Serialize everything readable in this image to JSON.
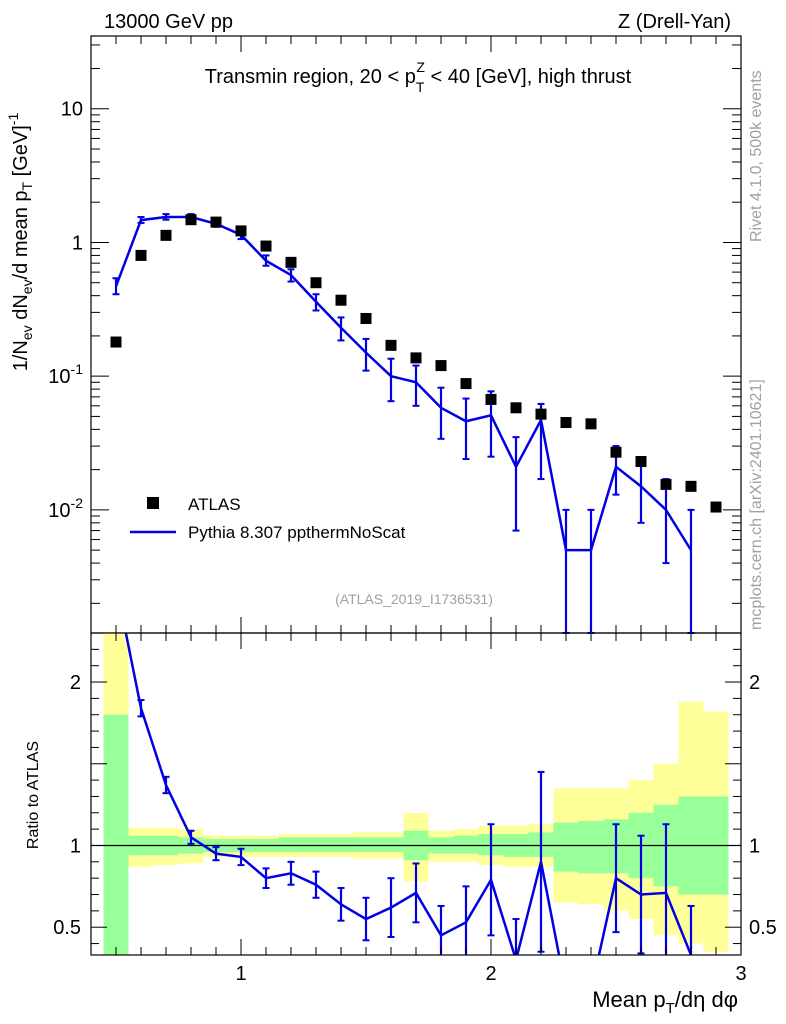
{
  "header": {
    "left": "13000 GeV pp",
    "right": "Z (Drell-Yan)"
  },
  "side_labels": {
    "rivet": "Rivet 4.1.0,  500k events",
    "mcplots": "mcplots.cern.ch [arXiv:2401.10621]"
  },
  "chart_data": [
    {
      "type": "scatter",
      "title": "Transmin region, 20 < p_T^Z < 40 [GeV], high thrust",
      "title_parts": {
        "prefix": "Transmin region, 20 < p",
        "sub": "T",
        "sup": "Z",
        "suffix": " < 40 [GeV], high thrust"
      },
      "watermark": "(ATLAS_2019_I1736531)",
      "xlabel": "Mean p_T/dη dφ",
      "ylabel": "1/N_ev dN_ev/d mean p_T [GeV]^-1",
      "xlim": [
        0.4,
        3.0
      ],
      "ylim": [
        0.0012,
        35
      ],
      "yscale": "log",
      "ytick_labels": [
        "10^-2",
        "10^-1",
        "1",
        "10"
      ],
      "legend": {
        "position": "bottom-left",
        "entries": [
          "ATLAS",
          "Pythia 8.307 ppthermNoScat"
        ]
      },
      "series": [
        {
          "name": "ATLAS",
          "marker": "square",
          "color": "#000000",
          "x": [
            0.5,
            0.6,
            0.7,
            0.8,
            0.9,
            1.0,
            1.1,
            1.2,
            1.3,
            1.4,
            1.5,
            1.6,
            1.7,
            1.8,
            1.9,
            2.0,
            2.1,
            2.2,
            2.3,
            2.4,
            2.5,
            2.6,
            2.7,
            2.8,
            2.9
          ],
          "y": [
            0.18,
            0.8,
            1.13,
            1.48,
            1.42,
            1.22,
            0.94,
            0.71,
            0.5,
            0.37,
            0.27,
            0.17,
            0.137,
            0.12,
            0.088,
            0.067,
            0.058,
            0.052,
            0.045,
            0.044,
            0.027,
            0.023,
            0.0155,
            0.015,
            0.0105
          ]
        },
        {
          "name": "Pythia 8.307 ppthermNoScat",
          "marker": "line",
          "color": "#0000e6",
          "x": [
            0.5,
            0.6,
            0.7,
            0.8,
            0.9,
            1.0,
            1.1,
            1.2,
            1.3,
            1.4,
            1.5,
            1.6,
            1.7,
            1.8,
            1.9,
            2.0,
            2.1,
            2.2,
            2.3,
            2.4,
            2.5,
            2.6,
            2.7,
            2.8
          ],
          "y": [
            0.47,
            1.47,
            1.55,
            1.55,
            1.38,
            1.14,
            0.73,
            0.57,
            0.36,
            0.23,
            0.15,
            0.1,
            0.09,
            0.058,
            0.046,
            0.051,
            0.021,
            0.047,
            0.005,
            0.005,
            0.021,
            0.015,
            0.01,
            0.005
          ],
          "yerr_low": [
            0.06,
            0.07,
            0.07,
            0.07,
            0.07,
            0.08,
            0.06,
            0.06,
            0.05,
            0.045,
            0.04,
            0.035,
            0.03,
            0.024,
            0.022,
            0.026,
            0.014,
            0.03,
            0.004,
            0.004,
            0.008,
            0.007,
            0.006,
            0.004
          ],
          "yerr_high": [
            0.07,
            0.08,
            0.08,
            0.08,
            0.08,
            0.09,
            0.07,
            0.06,
            0.05,
            0.045,
            0.04,
            0.035,
            0.03,
            0.024,
            0.022,
            0.026,
            0.014,
            0.015,
            0.005,
            0.005,
            0.009,
            0.008,
            0.007,
            0.005
          ]
        }
      ]
    },
    {
      "type": "line",
      "ylabel": "Ratio to ATLAS",
      "xlabel": "Mean p_T/dη dφ",
      "xlim": [
        0.4,
        3.0
      ],
      "ylim": [
        0.33,
        2.3
      ],
      "xticks": [
        1,
        2,
        3
      ],
      "yticks": [
        0.5,
        1,
        2
      ],
      "ref_line": 1,
      "bands": {
        "x_edges": [
          0.45,
          0.55,
          0.65,
          0.75,
          0.85,
          0.95,
          1.05,
          1.15,
          1.25,
          1.35,
          1.45,
          1.55,
          1.65,
          1.75,
          1.85,
          1.95,
          2.05,
          2.15,
          2.25,
          2.35,
          2.45,
          2.55,
          2.65,
          2.75,
          2.85,
          2.95
        ],
        "yellow_low": [
          0.0,
          0.87,
          0.88,
          0.89,
          0.93,
          0.93,
          0.93,
          0.93,
          0.93,
          0.93,
          0.92,
          0.92,
          0.78,
          0.9,
          0.9,
          0.88,
          0.87,
          0.87,
          0.65,
          0.64,
          0.6,
          0.55,
          0.45,
          0.4,
          0.35
        ],
        "yellow_high": [
          2.3,
          1.11,
          1.11,
          1.1,
          1.06,
          1.06,
          1.06,
          1.07,
          1.07,
          1.07,
          1.08,
          1.08,
          1.2,
          1.09,
          1.1,
          1.12,
          1.12,
          1.13,
          1.35,
          1.35,
          1.35,
          1.4,
          1.5,
          1.88,
          1.82
        ],
        "green_low": [
          0.0,
          0.94,
          0.94,
          0.95,
          0.96,
          0.96,
          0.96,
          0.96,
          0.96,
          0.96,
          0.96,
          0.96,
          0.91,
          0.95,
          0.95,
          0.94,
          0.93,
          0.93,
          0.84,
          0.83,
          0.83,
          0.8,
          0.75,
          0.7,
          0.7
        ],
        "green_high": [
          1.8,
          1.06,
          1.06,
          1.05,
          1.04,
          1.04,
          1.04,
          1.05,
          1.05,
          1.05,
          1.05,
          1.05,
          1.09,
          1.05,
          1.06,
          1.07,
          1.07,
          1.08,
          1.14,
          1.15,
          1.16,
          1.2,
          1.25,
          1.3,
          1.3
        ]
      },
      "series": [
        {
          "name": "Pythia 8.307 ppthermNoScat / ATLAS",
          "color": "#0000e6",
          "x": [
            0.5,
            0.6,
            0.7,
            0.8,
            0.9,
            1.0,
            1.1,
            1.2,
            1.3,
            1.4,
            1.5,
            1.6,
            1.7,
            1.8,
            1.9,
            2.0,
            2.1,
            2.2,
            2.3,
            2.4,
            2.5,
            2.6,
            2.7,
            2.8
          ],
          "y": [
            2.6,
            1.84,
            1.37,
            1.05,
            0.95,
            0.93,
            0.8,
            0.83,
            0.76,
            0.64,
            0.55,
            0.62,
            0.71,
            0.45,
            0.53,
            0.79,
            0.3,
            0.9,
            0.11,
            0.11,
            0.8,
            0.7,
            0.71,
            0.33
          ],
          "yerr": [
            0.1,
            0.05,
            0.05,
            0.04,
            0.04,
            0.05,
            0.06,
            0.07,
            0.08,
            0.1,
            0.13,
            0.18,
            0.18,
            0.18,
            0.22,
            0.34,
            0.25,
            0.55,
            0.2,
            0.2,
            0.33,
            0.36,
            0.42,
            0.3
          ]
        }
      ]
    }
  ]
}
